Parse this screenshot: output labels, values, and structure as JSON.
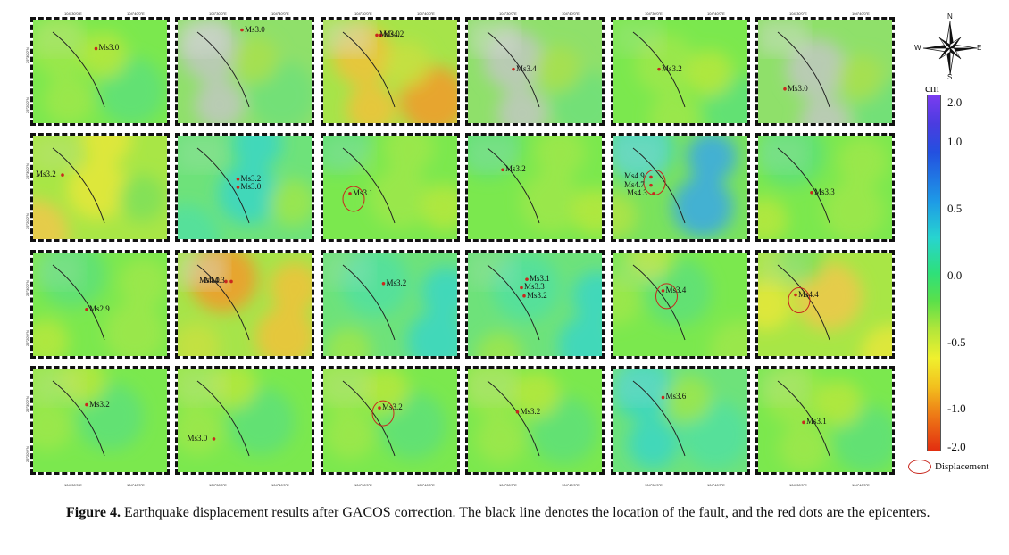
{
  "figure": {
    "caption_prefix": "Figure 4.",
    "caption_text": " Earthquake displacement results after GACOS correction. The black line denotes the location of the fault, and the red dots are the epicenters."
  },
  "panels": [
    {
      "row": 0,
      "col": 0,
      "tint": "green",
      "epicenters": [
        {
          "label": "Ms3.0"
        }
      ]
    },
    {
      "row": 0,
      "col": 1,
      "tint": "greygreen",
      "epicenters": [
        {
          "label": "Ms3.0"
        }
      ]
    },
    {
      "row": 0,
      "col": 2,
      "tint": "orange",
      "epicenters": [
        {
          "label": "Ms3.0"
        },
        {
          "label": "Ms4.2"
        }
      ]
    },
    {
      "row": 0,
      "col": 3,
      "tint": "greygreen",
      "epicenters": [
        {
          "label": "Ms3.4"
        }
      ]
    },
    {
      "row": 0,
      "col": 4,
      "tint": "green",
      "epicenters": [
        {
          "label": "Ms3.2"
        }
      ]
    },
    {
      "row": 0,
      "col": 5,
      "tint": "greygreen",
      "epicenters": [
        {
          "label": "Ms3.0"
        }
      ]
    },
    {
      "row": 1,
      "col": 0,
      "tint": "yellow",
      "epicenters": [
        {
          "label": "Ms3.2"
        }
      ]
    },
    {
      "row": 1,
      "col": 1,
      "tint": "cyan",
      "epicenters": [
        {
          "label": "Ms3.2"
        },
        {
          "label": "Ms3.0"
        }
      ]
    },
    {
      "row": 1,
      "col": 2,
      "tint": "green",
      "epicenters": [
        {
          "label": "Ms3.1"
        }
      ],
      "ellipse": true
    },
    {
      "row": 1,
      "col": 3,
      "tint": "green",
      "epicenters": [
        {
          "label": "Ms3.2"
        }
      ]
    },
    {
      "row": 1,
      "col": 4,
      "tint": "blue",
      "epicenters": [
        {
          "label": "Ms4.9"
        },
        {
          "label": "Ms4.7"
        },
        {
          "label": "Ms4.3"
        }
      ],
      "ellipse": true
    },
    {
      "row": 1,
      "col": 5,
      "tint": "green",
      "epicenters": [
        {
          "label": "Ms3.3"
        }
      ]
    },
    {
      "row": 2,
      "col": 0,
      "tint": "green",
      "epicenters": [
        {
          "label": "Ms2.9"
        }
      ]
    },
    {
      "row": 2,
      "col": 1,
      "tint": "orange",
      "epicenters": [
        {
          "label": "Ms4.0"
        },
        {
          "label": "Ms4.3"
        }
      ]
    },
    {
      "row": 2,
      "col": 2,
      "tint": "cyan",
      "epicenters": [
        {
          "label": "Ms3.2"
        }
      ]
    },
    {
      "row": 2,
      "col": 3,
      "tint": "cyan",
      "epicenters": [
        {
          "label": "Ms3.1"
        },
        {
          "label": "Ms3.3"
        },
        {
          "label": "Ms3.2"
        }
      ]
    },
    {
      "row": 2,
      "col": 4,
      "tint": "green",
      "epicenters": [
        {
          "label": "Ms3.4"
        }
      ],
      "ellipse": true
    },
    {
      "row": 2,
      "col": 5,
      "tint": "yellow",
      "epicenters": [
        {
          "label": "Ms4.4"
        }
      ],
      "ellipse": true
    },
    {
      "row": 3,
      "col": 0,
      "tint": "green",
      "epicenters": [
        {
          "label": "Ms3.2"
        }
      ]
    },
    {
      "row": 3,
      "col": 1,
      "tint": "green",
      "epicenters": [
        {
          "label": "Ms3.0"
        }
      ]
    },
    {
      "row": 3,
      "col": 2,
      "tint": "green",
      "epicenters": [
        {
          "label": "Ms3.2"
        }
      ],
      "ellipse": true
    },
    {
      "row": 3,
      "col": 3,
      "tint": "green",
      "epicenters": [
        {
          "label": "Ms3.2"
        }
      ]
    },
    {
      "row": 3,
      "col": 4,
      "tint": "cyan",
      "epicenters": [
        {
          "label": "Ms3.6"
        }
      ]
    },
    {
      "row": 3,
      "col": 5,
      "tint": "green",
      "epicenters": [
        {
          "label": "Ms3.1"
        }
      ]
    }
  ],
  "coords": {
    "top_left": "104°30'0\"E",
    "top_right": "104°40'0\"E",
    "left_top": "29°30'0\"N",
    "left_bottom": "29°20'0\"N"
  },
  "colors": {
    "epicenter": "#c8281e",
    "fault": "#222222",
    "ellipse": "#c8281e"
  },
  "compass": {
    "n": "N",
    "s": "S",
    "e": "E",
    "w": "W"
  },
  "colorbar": {
    "unit": "cm",
    "ticks": [
      "2.0",
      "1.0",
      "0.5",
      "0.0",
      "-0.5",
      "-1.0",
      "-2.0"
    ]
  },
  "legend": {
    "label": "Displacement"
  }
}
